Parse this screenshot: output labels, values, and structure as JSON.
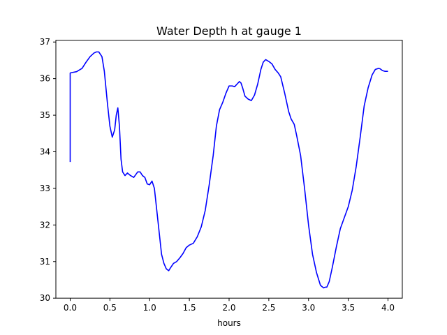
{
  "chart_data": {
    "type": "line",
    "title": "Water Depth h at gauge 1",
    "xlabel": "hours",
    "ylabel": "",
    "xlim": [
      -0.18,
      4.18
    ],
    "ylim": [
      30.0,
      37.05
    ],
    "xticks": [
      0.0,
      0.5,
      1.0,
      1.5,
      2.0,
      2.5,
      3.0,
      3.5,
      4.0
    ],
    "xtick_labels": [
      "0.0",
      "0.5",
      "1.0",
      "1.5",
      "2.0",
      "2.5",
      "3.0",
      "3.5",
      "4.0"
    ],
    "yticks": [
      30,
      31,
      32,
      33,
      34,
      35,
      36,
      37
    ],
    "ytick_labels": [
      "30",
      "31",
      "32",
      "33",
      "34",
      "35",
      "36",
      "37"
    ],
    "grid": false,
    "legend": "none",
    "series": [
      {
        "color": "#0000ff",
        "x": [
          0.0,
          0.0,
          0.01,
          0.08,
          0.15,
          0.2,
          0.25,
          0.3,
          0.33,
          0.36,
          0.4,
          0.43,
          0.47,
          0.5,
          0.53,
          0.56,
          0.58,
          0.6,
          0.62,
          0.64,
          0.66,
          0.69,
          0.72,
          0.76,
          0.8,
          0.85,
          0.88,
          0.91,
          0.94,
          0.97,
          1.0,
          1.03,
          1.06,
          1.09,
          1.12,
          1.15,
          1.18,
          1.21,
          1.24,
          1.26,
          1.3,
          1.34,
          1.38,
          1.42,
          1.46,
          1.5,
          1.55,
          1.6,
          1.65,
          1.7,
          1.75,
          1.8,
          1.84,
          1.88,
          1.92,
          1.96,
          2.0,
          2.04,
          2.07,
          2.1,
          2.13,
          2.15,
          2.17,
          2.2,
          2.24,
          2.28,
          2.32,
          2.36,
          2.4,
          2.43,
          2.46,
          2.5,
          2.54,
          2.58,
          2.62,
          2.65,
          2.7,
          2.75,
          2.78,
          2.82,
          2.85,
          2.9,
          2.95,
          3.0,
          3.05,
          3.1,
          3.15,
          3.19,
          3.21,
          3.23,
          3.26,
          3.3,
          3.35,
          3.4,
          3.45,
          3.5,
          3.55,
          3.6,
          3.65,
          3.7,
          3.75,
          3.8,
          3.84,
          3.88,
          3.9,
          3.93,
          3.96,
          4.0
        ],
        "y": [
          33.72,
          36.15,
          36.16,
          36.19,
          36.28,
          36.45,
          36.6,
          36.7,
          36.73,
          36.73,
          36.6,
          36.2,
          35.3,
          34.7,
          34.4,
          34.6,
          35.0,
          35.2,
          34.7,
          33.8,
          33.45,
          33.35,
          33.42,
          33.35,
          33.3,
          33.45,
          33.45,
          33.35,
          33.3,
          33.12,
          33.1,
          33.2,
          33.0,
          32.4,
          31.8,
          31.2,
          30.95,
          30.8,
          30.75,
          30.82,
          30.95,
          31.0,
          31.1,
          31.22,
          31.38,
          31.45,
          31.5,
          31.68,
          31.95,
          32.4,
          33.1,
          33.9,
          34.7,
          35.15,
          35.35,
          35.6,
          35.8,
          35.8,
          35.78,
          35.85,
          35.92,
          35.88,
          35.75,
          35.52,
          35.44,
          35.4,
          35.55,
          35.85,
          36.25,
          36.45,
          36.52,
          36.47,
          36.4,
          36.25,
          36.15,
          36.05,
          35.6,
          35.1,
          34.9,
          34.75,
          34.45,
          33.9,
          33.0,
          32.0,
          31.2,
          30.7,
          30.35,
          30.28,
          30.3,
          30.3,
          30.45,
          30.85,
          31.4,
          31.9,
          32.2,
          32.5,
          32.95,
          33.6,
          34.4,
          35.25,
          35.75,
          36.1,
          36.25,
          36.28,
          36.27,
          36.22,
          36.2,
          36.2
        ]
      }
    ]
  }
}
